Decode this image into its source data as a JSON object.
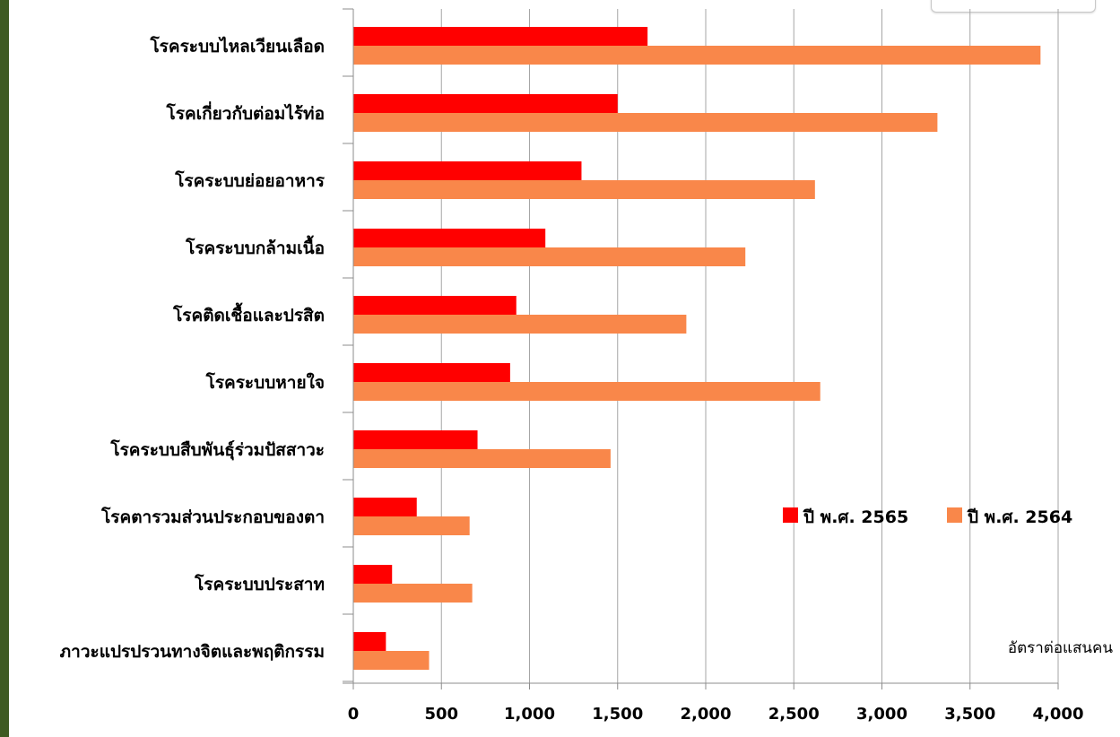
{
  "colors": {
    "series_2565": "#ff0000",
    "series_2564": "#f9874a",
    "grid": "#a6a6a6",
    "axis": "#8c8c8c",
    "frame_stripe": "#3e5a22"
  },
  "chart_data": {
    "type": "bar",
    "orientation": "horizontal",
    "categories": [
      "โรคระบบไหลเวียนเลือด",
      "โรคเกี่ยวกับต่อมไร้ท่อ",
      "โรคระบบย่อยอาหาร",
      "โรคระบบกล้ามเนื้อ",
      "โรคติดเชื้อและปรสิต",
      "โรคระบบหายใจ",
      "โรคระบบสืบพันธุ์ร่วมปัสสาวะ",
      "โรคตารวมส่วนประกอบของตา",
      "โรคระบบประสาท",
      "ภาวะแปรปรวนทางจิตและพฤติกรรม"
    ],
    "series": [
      {
        "name": "ปี พ.ศ. 2565",
        "values": [
          1670,
          1500,
          1295,
          1090,
          925,
          890,
          705,
          360,
          220,
          185
        ]
      },
      {
        "name": "ปี พ.ศ. 2564",
        "values": [
          3900,
          3315,
          2620,
          2225,
          1890,
          2650,
          1460,
          660,
          675,
          430
        ]
      }
    ],
    "xlim": [
      0,
      4000
    ],
    "xticks": [
      0,
      500,
      1000,
      1500,
      2000,
      2500,
      3000,
      3500,
      4000
    ],
    "xtick_labels": [
      "0",
      "500",
      "1,000",
      "1,500",
      "2,000",
      "2,500",
      "3,000",
      "3,500",
      "4,000"
    ],
    "xlabel": "อัตราต่อแสนคน",
    "title": "",
    "grid": "vertical",
    "legend_position": "right-middle"
  }
}
